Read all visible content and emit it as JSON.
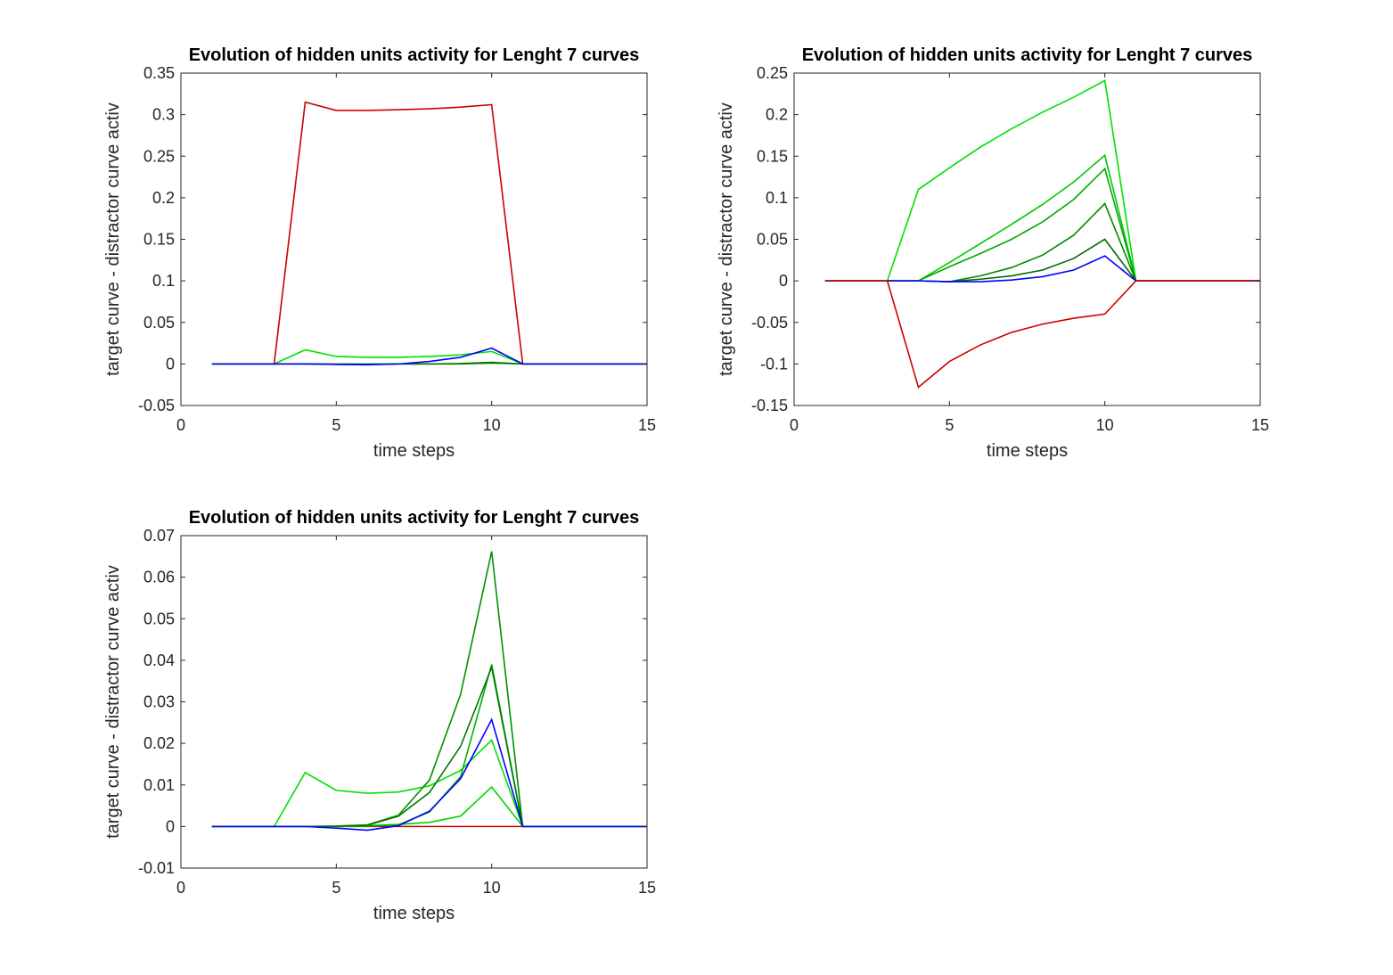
{
  "chart_data": [
    {
      "type": "line",
      "title": "Evolution of hidden units activity for Lenght 7 curves",
      "xlabel": "time steps",
      "ylabel": "target curve - distractor curve activ",
      "xlim": [
        0,
        15
      ],
      "ylim": [
        -0.05,
        0.35
      ],
      "xticks": [
        0,
        5,
        10,
        15
      ],
      "yticks": [
        -0.05,
        0,
        0.05,
        0.1,
        0.15,
        0.2,
        0.25,
        0.3,
        0.35
      ],
      "xtick_labels": [
        "0",
        "5",
        "10",
        "15"
      ],
      "ytick_labels": [
        "-0.05",
        "0",
        "0.05",
        "0.1",
        "0.15",
        "0.2",
        "0.25",
        "0.3",
        "0.35"
      ],
      "grid": false,
      "x": [
        1,
        2,
        3,
        4,
        5,
        6,
        7,
        8,
        9,
        10,
        11,
        12,
        13,
        14,
        15
      ],
      "series": [
        {
          "color": "#cc0000",
          "values": [
            0,
            0,
            0,
            0.315,
            0.305,
            0.305,
            0.306,
            0.307,
            0.309,
            0.312,
            0,
            0,
            0,
            0,
            0
          ]
        },
        {
          "color": "#00e000",
          "values": [
            0,
            0,
            0,
            0.017,
            0.009,
            0.008,
            0.008,
            0.009,
            0.011,
            0.015,
            0,
            0,
            0,
            0,
            0
          ]
        },
        {
          "color": "#00a000",
          "values": [
            0,
            0,
            0,
            0,
            0,
            0,
            0,
            0,
            0,
            0.001,
            0,
            0,
            0,
            0,
            0
          ]
        },
        {
          "color": "#007000",
          "values": [
            0,
            0,
            0,
            0,
            -0.0005,
            -0.0005,
            0,
            0,
            0.0005,
            0.002,
            0,
            0,
            0,
            0,
            0
          ]
        },
        {
          "color": "#0000ff",
          "values": [
            0,
            0,
            0,
            0,
            -0.0005,
            -0.001,
            0,
            0.003,
            0.008,
            0.019,
            0,
            0,
            0,
            0,
            0
          ]
        }
      ]
    },
    {
      "type": "line",
      "title": "Evolution of hidden units activity for Lenght 7 curves",
      "xlabel": "time steps",
      "ylabel": "target curve - distractor curve activ",
      "xlim": [
        0,
        15
      ],
      "ylim": [
        -0.15,
        0.25
      ],
      "xticks": [
        0,
        5,
        10,
        15
      ],
      "yticks": [
        -0.15,
        -0.1,
        -0.05,
        0,
        0.05,
        0.1,
        0.15,
        0.2,
        0.25
      ],
      "xtick_labels": [
        "0",
        "5",
        "10",
        "15"
      ],
      "ytick_labels": [
        "-0.15",
        "-0.1",
        "-0.05",
        "0",
        "0.05",
        "0.1",
        "0.15",
        "0.2",
        "0.25"
      ],
      "grid": false,
      "x": [
        1,
        2,
        3,
        4,
        5,
        6,
        7,
        8,
        9,
        10,
        11,
        12,
        13,
        14,
        15
      ],
      "series": [
        {
          "color": "#00e000",
          "values": [
            0,
            0,
            0,
            0.11,
            0.136,
            0.161,
            0.183,
            0.203,
            0.221,
            0.241,
            0,
            0,
            0,
            0,
            0
          ]
        },
        {
          "color": "#00c800",
          "values": [
            0,
            0,
            0,
            0,
            0.022,
            0.045,
            0.068,
            0.092,
            0.119,
            0.151,
            0,
            0,
            0,
            0,
            0
          ]
        },
        {
          "color": "#00a800",
          "values": [
            0,
            0,
            0,
            0,
            0.017,
            0.033,
            0.05,
            0.071,
            0.098,
            0.135,
            0,
            0,
            0,
            0,
            0
          ]
        },
        {
          "color": "#008800",
          "values": [
            0,
            0,
            0,
            0,
            -0.001,
            0.006,
            0.016,
            0.031,
            0.055,
            0.093,
            0,
            0,
            0,
            0,
            0
          ]
        },
        {
          "color": "#006800",
          "values": [
            0,
            0,
            0,
            0,
            -0.001,
            0.002,
            0.006,
            0.013,
            0.027,
            0.05,
            0,
            0,
            0,
            0,
            0
          ]
        },
        {
          "color": "#0000ff",
          "values": [
            0,
            0,
            0,
            0,
            -0.001,
            -0.001,
            0.001,
            0.005,
            0.013,
            0.03,
            0,
            0,
            0,
            0,
            0
          ]
        },
        {
          "color": "#cc0000",
          "values": [
            0,
            0,
            0,
            -0.128,
            -0.097,
            -0.077,
            -0.062,
            -0.052,
            -0.045,
            -0.04,
            0,
            0,
            0,
            0,
            0
          ]
        }
      ]
    },
    {
      "type": "line",
      "title": "Evolution of hidden units activity for Lenght 7 curves",
      "xlabel": "time steps",
      "ylabel": "target curve - distractor curve activ",
      "xlim": [
        0,
        15
      ],
      "ylim": [
        -0.01,
        0.07
      ],
      "xticks": [
        0,
        5,
        10,
        15
      ],
      "yticks": [
        -0.01,
        0,
        0.01,
        0.02,
        0.03,
        0.04,
        0.05,
        0.06,
        0.07
      ],
      "xtick_labels": [
        "0",
        "5",
        "10",
        "15"
      ],
      "ytick_labels": [
        "-0.01",
        "0",
        "0.01",
        "0.02",
        "0.03",
        "0.04",
        "0.05",
        "0.06",
        "0.07"
      ],
      "grid": false,
      "x": [
        1,
        2,
        3,
        4,
        5,
        6,
        7,
        8,
        9,
        10,
        11,
        12,
        13,
        14,
        15
      ],
      "series": [
        {
          "color": "#cc0000",
          "values": [
            0,
            0,
            0,
            0,
            0,
            0,
            0,
            0,
            0,
            0,
            0,
            0,
            0,
            0,
            0
          ]
        },
        {
          "color": "#00e000",
          "values": [
            0,
            0,
            0,
            0.013,
            0.0087,
            0.008,
            0.0083,
            0.0098,
            0.0135,
            0.0208,
            0,
            0,
            0,
            0,
            0
          ]
        },
        {
          "color": "#00d400",
          "values": [
            0,
            0,
            0,
            0,
            0,
            0.0002,
            0.0005,
            0.001,
            0.0025,
            0.0095,
            0,
            0,
            0,
            0,
            0
          ]
        },
        {
          "color": "#00b000",
          "values": [
            0,
            0,
            0,
            0,
            0,
            0.0001,
            0.0004,
            0.0035,
            0.012,
            0.039,
            0,
            0,
            0,
            0,
            0
          ]
        },
        {
          "color": "#009000",
          "values": [
            0,
            0,
            0,
            0,
            0.0001,
            0.0004,
            0.0027,
            0.0112,
            0.0318,
            0.0662,
            0,
            0,
            0,
            0,
            0
          ]
        },
        {
          "color": "#007800",
          "values": [
            0,
            0,
            0,
            0,
            0.0001,
            0.0003,
            0.0025,
            0.0082,
            0.0193,
            0.0383,
            0,
            0,
            0,
            0,
            0
          ]
        },
        {
          "color": "#0000ff",
          "values": [
            0,
            0,
            0,
            0,
            -0.0004,
            -0.0009,
            0.0002,
            0.0037,
            0.0115,
            0.0257,
            0,
            0,
            0,
            0,
            0
          ]
        }
      ]
    }
  ]
}
